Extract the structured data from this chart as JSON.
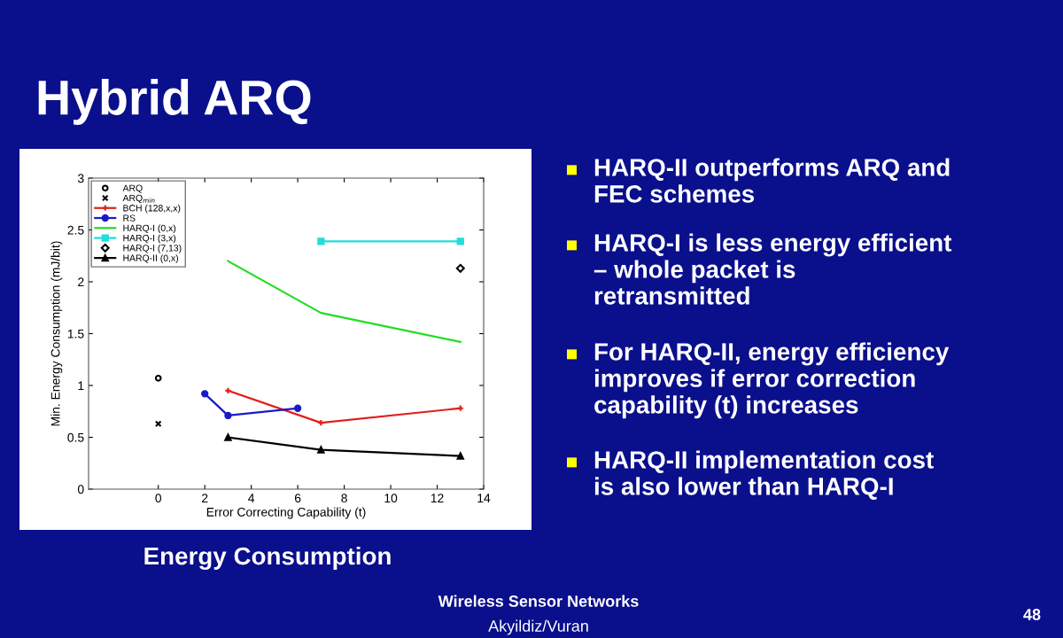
{
  "chart_data": {
    "type": "line",
    "title": "Hybrid ARQ",
    "xlabel": "Error Correcting Capability (t)",
    "ylabel": "Min. Energy Consumption (mJ/bit)",
    "xlim": [
      -3,
      14
    ],
    "xticks": [
      0,
      2,
      4,
      6,
      8,
      10,
      12,
      14
    ],
    "ylim": [
      0,
      3
    ],
    "yticks": [
      0,
      0.5,
      1,
      1.5,
      2,
      2.5,
      3
    ],
    "grid": false,
    "legend": "top left",
    "series": [
      {
        "name": "ARQ",
        "type": "scatter",
        "marker": "circle",
        "color": "#000000",
        "x": [
          0
        ],
        "values": [
          1.07
        ]
      },
      {
        "name": "ARQ$_{min}$",
        "type": "scatter",
        "marker": "cross",
        "color": "#000000",
        "x": [
          0
        ],
        "values": [
          0.63
        ]
      },
      {
        "name": "BCH (128,x,x)",
        "marker": "cross",
        "color": "#e0201c",
        "x": [
          3,
          7,
          13
        ],
        "values": [
          0.95,
          0.64,
          0.78
        ]
      },
      {
        "name": "RS",
        "marker": "circle",
        "color": "#1a1acc",
        "x": [
          2,
          3,
          6
        ],
        "values": [
          0.92,
          0.71,
          0.78
        ]
      },
      {
        "name": "HARQ-I (0,x)",
        "marker": "none",
        "color": "#22dd22",
        "x": [
          3,
          7,
          13
        ],
        "values": [
          2.2,
          1.7,
          1.42
        ]
      },
      {
        "name": "HARQ-I (3,x)",
        "marker": "square",
        "color": "#22dddd",
        "x": [
          7,
          13
        ],
        "values": [
          2.39,
          2.39
        ]
      },
      {
        "name": "HARQ-I (7,13)",
        "type": "scatter",
        "marker": "diamond",
        "color": "#000000",
        "x": [
          13
        ],
        "values": [
          2.13
        ]
      },
      {
        "name": "HARQ-II (0,x)",
        "marker": "triangle",
        "color": "#000000",
        "x": [
          3,
          7,
          13
        ],
        "values": [
          0.5,
          0.38,
          0.32
        ]
      }
    ],
    "annotations": [
      "HARQ-II outperforms ARQ and\nFEC schemes",
      "HARQ-I is less energy efficient\n– whole packet is\nretransmitted",
      "For HARQ-II, energy efficiency\nimproves if error correction\ncapability (t) increases",
      "HARQ-II implementation cost\nis also lower than HARQ-I",
      "Energy Consumption",
      "Wireless Sensor Networks",
      "Akyildiz/Vuran",
      "48"
    ]
  }
}
